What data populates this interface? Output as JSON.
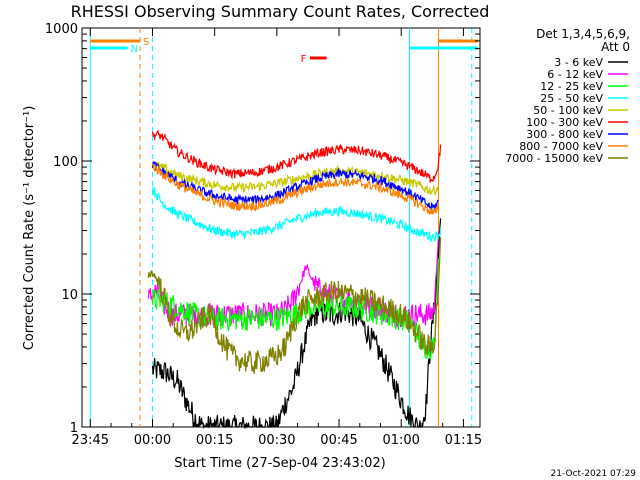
{
  "chart_data": {
    "type": "line",
    "title": "RHESSI Observing Summary Count Rates, Corrected",
    "xlabel": "Start Time (27-Sep-04 23:43:02)",
    "ylabel": "Corrected Count Rate (s⁻¹ detector⁻¹)",
    "yscale": "log",
    "ylim": [
      1,
      1000
    ],
    "xlim_minutes": [
      -17,
      79
    ],
    "x_ticks": [
      {
        "minutes": -15,
        "label": "23:45"
      },
      {
        "minutes": 0,
        "label": "00:00"
      },
      {
        "minutes": 15,
        "label": "00:15"
      },
      {
        "minutes": 30,
        "label": "00:30"
      },
      {
        "minutes": 45,
        "label": "00:45"
      },
      {
        "minutes": 60,
        "label": "01:00"
      },
      {
        "minutes": 75,
        "label": "01:15"
      }
    ],
    "y_ticks": [
      {
        "value": 1,
        "label": "1"
      },
      {
        "value": 10,
        "label": "10"
      },
      {
        "value": 100,
        "label": "100"
      },
      {
        "value": 1000,
        "label": "1000"
      }
    ],
    "legend_title": "Det 1,3,4,5,6,9,",
    "legend_subtitle": "Att 0",
    "legend_position": "top-right",
    "timestamp": "21-Oct-2021 07:29",
    "markers": [
      {
        "label": "S",
        "color": "#ff8000",
        "x_minutes": [
          -15,
          -3
        ]
      },
      {
        "label": "N",
        "color": "#00ffff",
        "x_minutes": [
          -15,
          -6
        ]
      },
      {
        "label": "F",
        "color": "#ff0000",
        "x_minutes": [
          38,
          42
        ]
      }
    ],
    "vlines": [
      {
        "x_minutes": -15,
        "color": "#00ffff",
        "style": "solid"
      },
      {
        "x_minutes": -3,
        "color": "#ff8000",
        "style": "dashed"
      },
      {
        "x_minutes": 0,
        "color": "#00ffff",
        "style": "dashed"
      },
      {
        "x_minutes": 62,
        "color": "#00ffff",
        "style": "solid"
      },
      {
        "x_minutes": 69,
        "color": "#ff8000",
        "style": "solid"
      },
      {
        "x_minutes": 77,
        "color": "#00ffff",
        "style": "dashed"
      }
    ],
    "series": [
      {
        "name": "3 - 6 keV",
        "color": "#000000",
        "x": [
          0,
          3,
          6,
          8,
          10,
          12,
          14,
          18,
          22,
          25,
          28,
          30,
          32,
          34,
          36,
          38,
          40,
          42,
          44,
          46,
          48,
          50,
          52,
          54,
          56,
          58,
          60,
          62,
          64,
          65,
          66,
          67,
          68,
          69,
          69.5
        ],
        "y": [
          2.7,
          2.6,
          2.2,
          1.6,
          1.2,
          1,
          1,
          1,
          1,
          1,
          1,
          1,
          1.5,
          2,
          3.5,
          6,
          7.5,
          7,
          7,
          7.5,
          7,
          6.5,
          5,
          4,
          3,
          2.2,
          1.6,
          1.2,
          1,
          1,
          1.5,
          4,
          8,
          20,
          40
        ]
      },
      {
        "name": "6 - 12 keV",
        "color": "#ff00ff",
        "x": [
          -1,
          0,
          1,
          2,
          3,
          4,
          5,
          6,
          8,
          10,
          12,
          14,
          16,
          18,
          20,
          25,
          30,
          32,
          34,
          36,
          37,
          38,
          39,
          40,
          42,
          44,
          46,
          48,
          50,
          52,
          54,
          56,
          58,
          60,
          62,
          64,
          65,
          66,
          67,
          68,
          69
        ],
        "y": [
          9,
          10,
          10.5,
          9,
          8,
          7.5,
          7,
          7,
          7,
          7,
          7,
          7,
          7,
          7,
          7,
          7,
          7,
          7.5,
          9,
          13,
          16,
          14,
          12,
          11,
          10,
          9.5,
          9,
          9,
          8.5,
          8,
          8,
          7.5,
          7,
          7,
          7,
          7,
          7,
          7,
          7,
          8,
          30
        ]
      },
      {
        "name": "12 - 25 keV",
        "color": "#00ff00",
        "x": [
          0,
          2,
          4,
          6,
          8,
          10,
          14,
          18,
          22,
          26,
          30,
          34,
          36,
          38,
          40,
          44,
          48,
          52,
          56,
          60,
          62,
          64,
          65,
          66,
          67,
          68,
          69
        ],
        "y": [
          9,
          9,
          8.5,
          8,
          7.5,
          7,
          6.5,
          6.5,
          6.5,
          6.5,
          6.5,
          7,
          7.5,
          8,
          8,
          8,
          8,
          7.5,
          7,
          6.5,
          6,
          5,
          4,
          4,
          4,
          4,
          20
        ]
      },
      {
        "name": "25 - 50 keV",
        "color": "#00ffff",
        "x": [
          0,
          2,
          4,
          6,
          10,
          15,
          20,
          25,
          30,
          35,
          40,
          45,
          50,
          55,
          60,
          63,
          66,
          67,
          68,
          69,
          69.5
        ],
        "y": [
          62,
          50,
          44,
          40,
          35,
          30,
          28,
          29,
          32,
          37,
          41,
          42,
          40,
          37,
          33,
          30,
          28,
          27,
          27,
          28,
          30
        ]
      },
      {
        "name": "50 - 100 keV",
        "color": "#c8c800",
        "x": [
          0,
          2,
          4,
          6,
          10,
          15,
          20,
          25,
          30,
          35,
          40,
          45,
          50,
          55,
          60,
          63,
          66,
          67,
          68,
          69
        ],
        "y": [
          95,
          90,
          84,
          78,
          72,
          66,
          63,
          64,
          68,
          74,
          80,
          84,
          82,
          78,
          72,
          68,
          62,
          60,
          60,
          64
        ]
      },
      {
        "name": "100 - 300 keV",
        "color": "#ff0000",
        "x": [
          0,
          1,
          2,
          3,
          4,
          6,
          10,
          15,
          20,
          25,
          30,
          35,
          40,
          45,
          50,
          55,
          60,
          63,
          66,
          67,
          68,
          69,
          69.5
        ],
        "y": [
          155,
          158,
          155,
          145,
          135,
          118,
          100,
          86,
          80,
          82,
          90,
          102,
          115,
          122,
          120,
          110,
          97,
          88,
          78,
          74,
          76,
          95,
          130
        ]
      },
      {
        "name": "300 - 800 keV",
        "color": "#0000ff",
        "x": [
          0,
          2,
          4,
          6,
          10,
          15,
          20,
          25,
          30,
          35,
          40,
          45,
          50,
          55,
          60,
          63,
          66,
          67,
          68,
          69
        ],
        "y": [
          95,
          85,
          78,
          70,
          62,
          55,
          51,
          51,
          55,
          64,
          74,
          80,
          78,
          72,
          62,
          55,
          48,
          45,
          45,
          50
        ]
      },
      {
        "name": "800 - 7000 keV",
        "color": "#ff8000",
        "x": [
          0,
          2,
          4,
          6,
          10,
          15,
          20,
          25,
          30,
          35,
          40,
          45,
          50,
          55,
          60,
          63,
          66,
          67,
          68,
          69
        ],
        "y": [
          92,
          82,
          74,
          67,
          58,
          50,
          46,
          46,
          50,
          58,
          66,
          70,
          68,
          63,
          55,
          50,
          44,
          42,
          40,
          44
        ]
      },
      {
        "name": "7000 - 15000 keV",
        "color": "#808000",
        "x": [
          -1,
          0,
          1,
          2,
          3,
          4,
          6,
          8,
          10,
          12,
          14,
          16,
          18,
          20,
          24,
          28,
          30,
          32,
          34,
          36,
          38,
          40,
          42,
          44,
          46,
          48,
          50,
          52,
          54,
          56,
          58,
          60,
          62,
          64,
          65,
          66,
          67,
          68,
          69,
          69.5
        ],
        "y": [
          14,
          14.5,
          13,
          11,
          9,
          7,
          5.5,
          5,
          5.5,
          6.5,
          7,
          5,
          3.8,
          3.3,
          3,
          3.2,
          3.4,
          4,
          6,
          8,
          9,
          9.5,
          10,
          10.5,
          10,
          10,
          9.5,
          9,
          8.5,
          8,
          7.5,
          7,
          6,
          5,
          4.5,
          4,
          4,
          4.5,
          12,
          25
        ]
      }
    ]
  }
}
